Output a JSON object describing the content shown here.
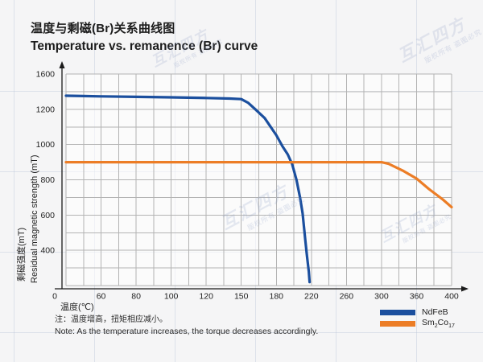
{
  "title": {
    "zh": "温度与剩磁(Br)关系曲线图",
    "en": "Temperature vs. remanence (Br) curve"
  },
  "note": {
    "zh": "注：温度增高，扭矩相应减小。",
    "en": "Note: As the temperature increases, the torque decreases accordingly."
  },
  "watermark": {
    "brand": "互汇四方",
    "notice": "版权所有 盗图必究"
  },
  "colors": {
    "ndfeb": "#1b4f9e",
    "smco": "#ec7d26",
    "grid": "#b3b3b3",
    "axis": "#1a1a1a",
    "tick_text": "#222222"
  },
  "chart_data": {
    "type": "line",
    "title": "温度与剩磁(Br)关系曲线图 / Temperature vs. remanence (Br) curve",
    "xlabel": "温度(℃)",
    "ylabel_zh": "剩磁强度(mT)",
    "ylabel_en": "Residual magnetic strength (mT)",
    "grid": "on",
    "legend_position": "bottom-right",
    "x_tick_labels": [
      "0",
      "60",
      "80",
      "100",
      "120",
      "150",
      "180",
      "220",
      "260",
      "300",
      "360",
      "400"
    ],
    "y_tick_labels": [
      "1600",
      "1200",
      "1000",
      "800",
      "600",
      "400"
    ],
    "y_axis_values": [
      1600,
      1200,
      1000,
      800,
      600,
      400,
      0
    ],
    "x_axis_values": [
      0,
      60,
      80,
      100,
      120,
      150,
      180,
      220,
      260,
      300,
      360,
      400
    ],
    "series": [
      {
        "name": "NdFeB",
        "name_html": "NdFeB",
        "color": "#1b4f9e",
        "points": [
          [
            0,
            1354
          ],
          [
            30,
            1350
          ],
          [
            60,
            1346
          ],
          [
            80,
            1341
          ],
          [
            100,
            1335
          ],
          [
            120,
            1328
          ],
          [
            140,
            1322
          ],
          [
            150,
            1315
          ],
          [
            156,
            1272
          ],
          [
            162,
            1200
          ],
          [
            170,
            1150
          ],
          [
            180,
            1053
          ],
          [
            187,
            990
          ],
          [
            193,
            944
          ],
          [
            198,
            889
          ],
          [
            203,
            800
          ],
          [
            207,
            700
          ],
          [
            210,
            610
          ],
          [
            213,
            460
          ],
          [
            215,
            330
          ],
          [
            217,
            160
          ],
          [
            218,
            40
          ]
        ]
      },
      {
        "name": "Sm2Co17",
        "name_html": "Sm<sub>2</sub>Co<sub>17</sub>",
        "color": "#ec7d26",
        "points": [
          [
            0,
            900
          ],
          [
            60,
            900
          ],
          [
            120,
            900
          ],
          [
            180,
            900
          ],
          [
            240,
            900
          ],
          [
            300,
            900
          ],
          [
            312,
            891
          ],
          [
            336,
            853
          ],
          [
            360,
            807
          ],
          [
            374,
            748
          ],
          [
            390,
            688
          ],
          [
            400,
            645
          ]
        ]
      }
    ]
  }
}
